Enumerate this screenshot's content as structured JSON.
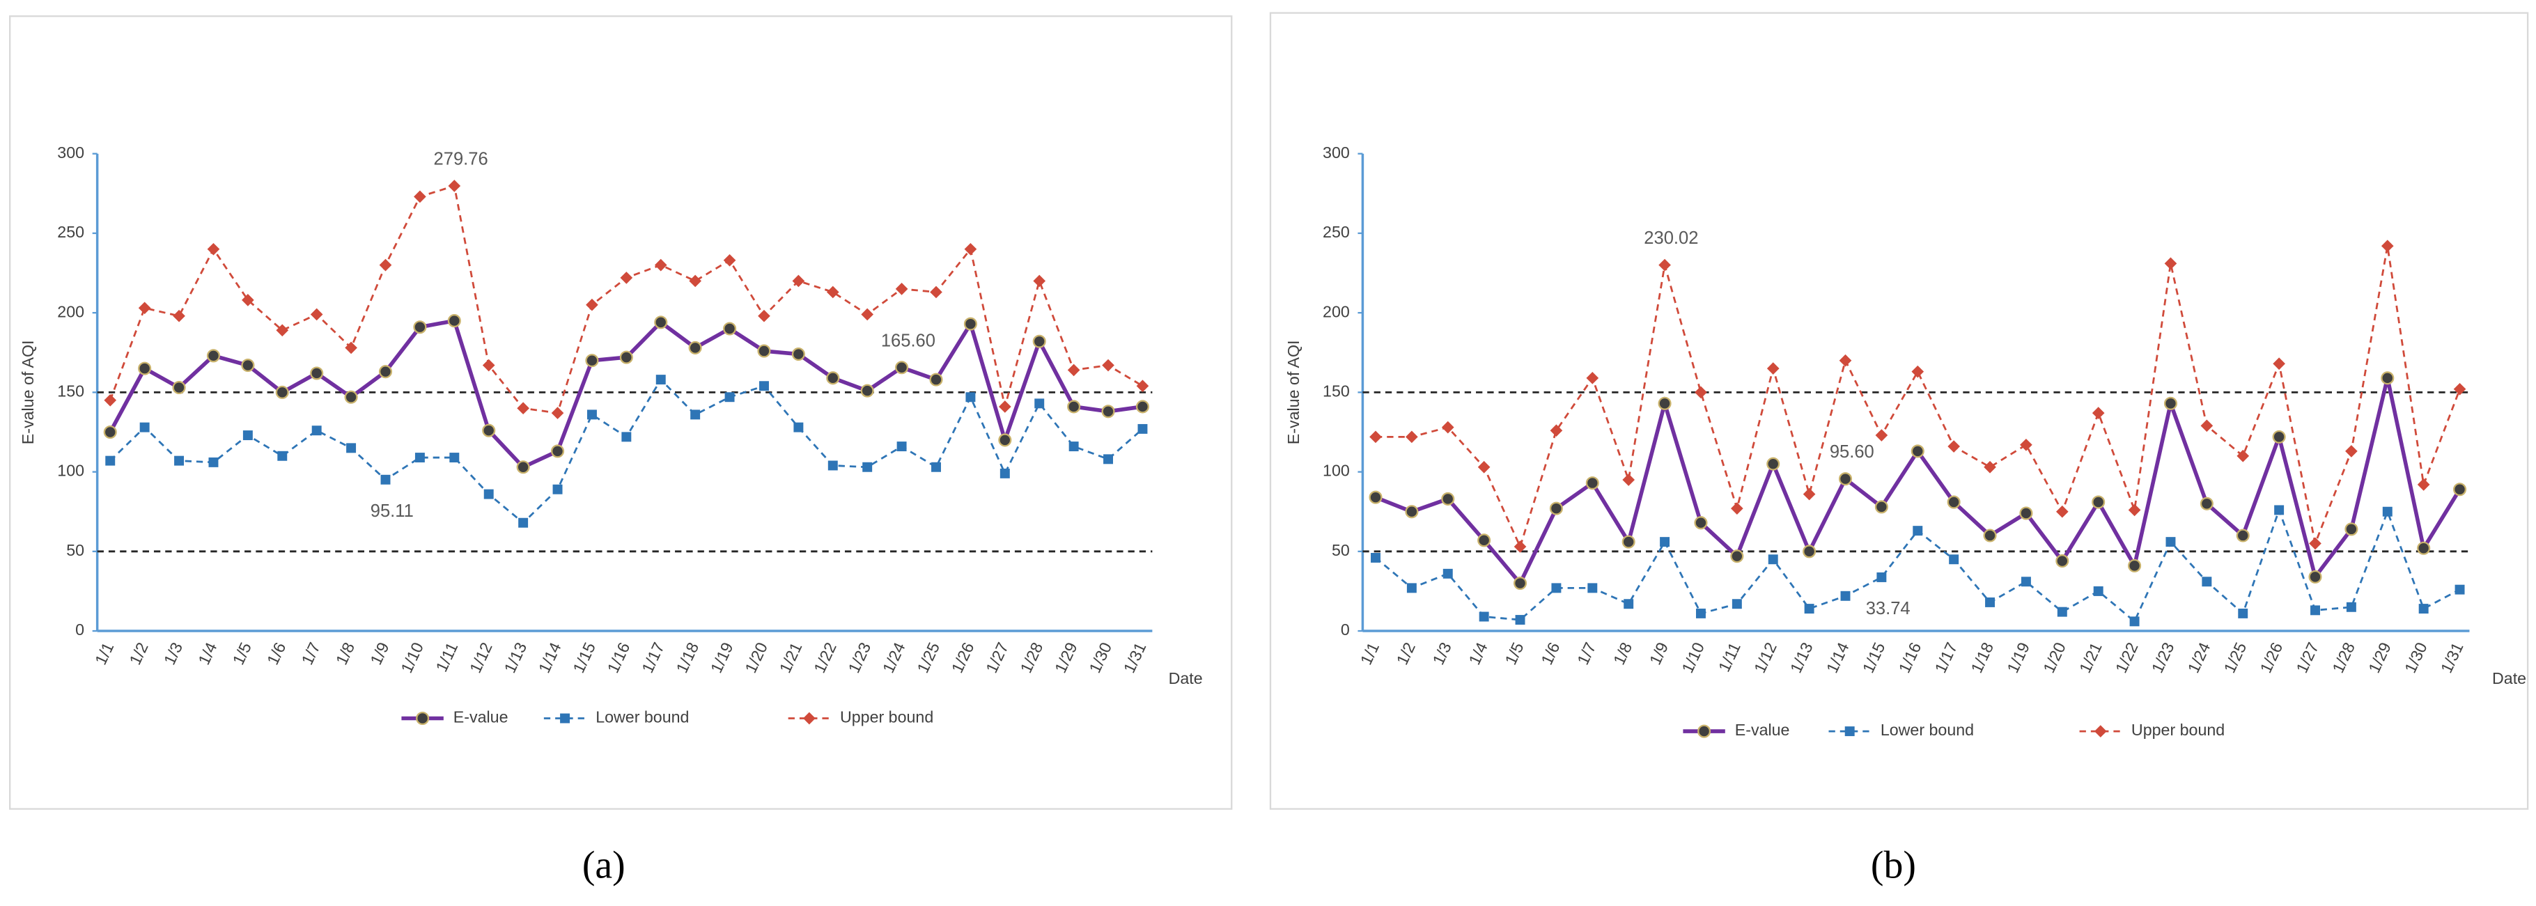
{
  "chart_data": [
    {
      "type": "line",
      "caption": "(a)",
      "y_label": "E-value of AQI",
      "x_label": "Date",
      "categories": [
        "1/1",
        "1/2",
        "1/3",
        "1/4",
        "1/5",
        "1/6",
        "1/7",
        "1/8",
        "1/9",
        "1/10",
        "1/11",
        "1/12",
        "1/13",
        "1/14",
        "1/15",
        "1/16",
        "1/17",
        "1/18",
        "1/19",
        "1/20",
        "1/21",
        "1/22",
        "1/23",
        "1/24",
        "1/25",
        "1/26",
        "1/27",
        "1/28",
        "1/29",
        "1/30",
        "1/31"
      ],
      "ylim": [
        0,
        300
      ],
      "yticks": [
        0,
        50,
        100,
        150,
        200,
        250,
        300
      ],
      "hlines": [
        150,
        50
      ],
      "series": [
        {
          "name": "E-value",
          "color": "#7030a0",
          "marker": "circle",
          "dashed": false,
          "values": [
            125,
            165,
            153,
            173,
            167,
            150,
            162,
            147,
            163,
            191,
            195,
            126,
            103,
            113,
            170,
            172,
            194,
            178,
            190,
            176,
            174,
            159,
            151,
            165.6,
            158,
            193,
            120,
            182,
            141,
            138,
            141
          ],
          "value_labels": [
            null,
            null,
            null,
            null,
            null,
            null,
            null,
            null,
            null,
            null,
            null,
            null,
            null,
            null,
            null,
            null,
            null,
            null,
            null,
            null,
            null,
            null,
            null,
            "165.60",
            null,
            null,
            null,
            null,
            null,
            null,
            null
          ]
        },
        {
          "name": "Lower bound",
          "color": "#2e75b6",
          "marker": "square",
          "dashed": true,
          "values": [
            107,
            128,
            107,
            106,
            123,
            110,
            126,
            115,
            95.11,
            109,
            109,
            86,
            68,
            89,
            136,
            122,
            158,
            136,
            147,
            154,
            128,
            104,
            103,
            116,
            103,
            147,
            99,
            143,
            116,
            108,
            127
          ],
          "value_labels": [
            null,
            null,
            null,
            null,
            null,
            null,
            null,
            null,
            "95.11",
            null,
            null,
            null,
            null,
            null,
            null,
            null,
            null,
            null,
            null,
            null,
            null,
            null,
            null,
            null,
            null,
            null,
            null,
            null,
            null,
            null,
            null
          ]
        },
        {
          "name": "Upper bound",
          "color": "#d04a3a",
          "marker": "diamond",
          "dashed": true,
          "values": [
            145,
            203,
            198,
            240,
            208,
            189,
            199,
            178,
            230,
            273,
            279.76,
            167,
            140,
            137,
            205,
            222,
            230,
            220,
            233,
            198,
            220,
            213,
            199,
            215,
            213,
            240,
            141,
            220,
            164,
            167,
            154
          ],
          "value_labels": [
            null,
            null,
            null,
            null,
            null,
            null,
            null,
            null,
            null,
            null,
            "279.76",
            null,
            null,
            null,
            null,
            null,
            null,
            null,
            null,
            null,
            null,
            null,
            null,
            null,
            null,
            null,
            null,
            null,
            null,
            null,
            null
          ]
        }
      ]
    },
    {
      "type": "line",
      "caption": "(b)",
      "y_label": "E-value of AQI",
      "x_label": "Date",
      "categories": [
        "1/1",
        "1/2",
        "1/3",
        "1/4",
        "1/5",
        "1/6",
        "1/7",
        "1/8",
        "1/9",
        "1/10",
        "1/11",
        "1/12",
        "1/13",
        "1/14",
        "1/15",
        "1/16",
        "1/17",
        "1/18",
        "1/19",
        "1/20",
        "1/21",
        "1/22",
        "1/23",
        "1/24",
        "1/25",
        "1/26",
        "1/27",
        "1/28",
        "1/29",
        "1/30",
        "1/31"
      ],
      "ylim": [
        0,
        300
      ],
      "yticks": [
        0,
        50,
        100,
        150,
        200,
        250,
        300
      ],
      "hlines": [
        150,
        50
      ],
      "series": [
        {
          "name": "E-value",
          "color": "#7030a0",
          "marker": "circle",
          "dashed": false,
          "values": [
            84,
            75,
            83,
            57,
            30,
            77,
            93,
            56,
            143,
            68,
            47,
            105,
            50,
            95.6,
            78,
            113,
            81,
            60,
            74,
            44,
            81,
            41,
            143,
            80,
            60,
            122,
            34,
            64,
            159,
            52,
            89
          ],
          "value_labels": [
            null,
            null,
            null,
            null,
            null,
            null,
            null,
            null,
            null,
            null,
            null,
            null,
            null,
            "95.60",
            null,
            null,
            null,
            null,
            null,
            null,
            null,
            null,
            null,
            null,
            null,
            null,
            null,
            null,
            null,
            null,
            null
          ]
        },
        {
          "name": "Lower bound",
          "color": "#2e75b6",
          "marker": "square",
          "dashed": true,
          "values": [
            46,
            27,
            36,
            9,
            7,
            27,
            27,
            17,
            56,
            11,
            17,
            45,
            14,
            22,
            33.74,
            63,
            45,
            18,
            31,
            12,
            25,
            6,
            56,
            31,
            11,
            76,
            13,
            15,
            75,
            14,
            26
          ],
          "value_labels": [
            null,
            null,
            null,
            null,
            null,
            null,
            null,
            null,
            null,
            null,
            null,
            null,
            null,
            null,
            "33.74",
            null,
            null,
            null,
            null,
            null,
            null,
            null,
            null,
            null,
            null,
            null,
            null,
            null,
            null,
            null,
            null
          ]
        },
        {
          "name": "Upper bound",
          "color": "#d04a3a",
          "marker": "diamond",
          "dashed": true,
          "values": [
            122,
            122,
            128,
            103,
            53,
            126,
            159,
            95,
            230.02,
            150,
            77,
            165,
            86,
            170,
            123,
            163,
            116,
            103,
            117,
            75,
            137,
            76,
            231,
            129,
            110,
            168,
            55,
            113,
            242,
            92,
            152
          ],
          "value_labels": [
            null,
            null,
            null,
            null,
            null,
            null,
            null,
            null,
            "230.02",
            null,
            null,
            null,
            null,
            null,
            null,
            null,
            null,
            null,
            null,
            null,
            null,
            null,
            null,
            null,
            null,
            null,
            null,
            null,
            null,
            null,
            null
          ]
        }
      ]
    }
  ]
}
